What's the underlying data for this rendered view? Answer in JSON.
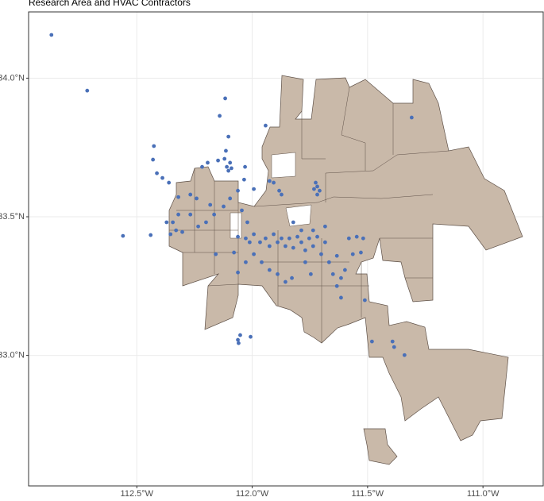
{
  "chart_data": {
    "type": "scatter",
    "title": "Research Area and HVAC Contractors",
    "xlim": [
      -112.969,
      -110.739
    ],
    "ylim": [
      32.529,
      34.239
    ],
    "grid": true,
    "color": "#4a70b8",
    "xticks": [
      {
        "value": -112.5,
        "label": "112.5°W"
      },
      {
        "value": -112.0,
        "label": "112.0°W"
      },
      {
        "value": -111.5,
        "label": "111.5°W"
      },
      {
        "value": -111.0,
        "label": "111.0°W"
      }
    ],
    "yticks": [
      {
        "value": 33.0,
        "label": "33.0°N"
      },
      {
        "value": 33.5,
        "label": "33.5°N"
      },
      {
        "value": 34.0,
        "label": "34.0°N"
      }
    ],
    "x": [
      -112.87,
      -112.715,
      -112.56,
      -112.44,
      -112.426,
      -112.43,
      -112.413,
      -112.389,
      -112.361,
      -112.371,
      -112.354,
      -112.33,
      -112.303,
      -112.32,
      -112.268,
      -112.241,
      -112.217,
      -112.193,
      -112.148,
      -112.12,
      -112.11,
      -112.103,
      -112.096,
      -112.09,
      -112.114,
      -112.103,
      -112.117,
      -112.141,
      -111.993,
      -112.031,
      -112.035,
      -112.062,
      -112.096,
      -112.124,
      -112.165,
      -112.2,
      -112.234,
      -112.158,
      -112.079,
      -112.062,
      -112.028,
      -112.011,
      -111.993,
      -111.966,
      -111.942,
      -111.925,
      -111.907,
      -111.89,
      -111.873,
      -111.856,
      -111.839,
      -111.822,
      -111.804,
      -111.787,
      -111.77,
      -111.753,
      -111.736,
      -111.718,
      -111.701,
      -111.684,
      -111.667,
      -111.65,
      -111.633,
      -111.615,
      -111.581,
      -111.564,
      -111.547,
      -111.519,
      -111.529,
      -111.512,
      -111.684,
      -111.736,
      -111.828,
      -111.856,
      -111.89,
      -111.925,
      -111.959,
      -111.993,
      -112.028,
      -112.062,
      -111.873,
      -111.907,
      -111.925,
      -111.942,
      -111.883,
      -111.725,
      -111.718,
      -111.708,
      -111.732,
      -111.718,
      -111.392,
      -111.385,
      -111.34,
      -111.481,
      -111.309,
      -112.052,
      -112.062,
      -112.059,
      -112.007,
      -112.182,
      -112.268,
      -112.32,
      -112.344,
      -112.045,
      -112.021,
      -111.822,
      -111.787,
      -111.77,
      -111.746,
      -111.615,
      -111.598,
      -111.633
    ],
    "values": [
      34.156,
      33.955,
      33.431,
      33.434,
      33.755,
      33.706,
      33.657,
      33.64,
      33.623,
      33.48,
      33.437,
      33.451,
      33.445,
      33.571,
      33.58,
      33.566,
      33.68,
      33.695,
      33.703,
      33.709,
      33.68,
      33.666,
      33.695,
      33.675,
      33.738,
      33.789,
      33.927,
      33.864,
      33.6,
      33.68,
      33.634,
      33.594,
      33.566,
      33.537,
      33.508,
      33.48,
      33.465,
      33.365,
      33.371,
      33.428,
      33.422,
      33.408,
      33.437,
      33.408,
      33.422,
      33.394,
      33.437,
      33.408,
      33.422,
      33.394,
      33.422,
      33.388,
      33.428,
      33.408,
      33.379,
      33.422,
      33.394,
      33.428,
      33.365,
      33.408,
      33.336,
      33.293,
      33.25,
      33.208,
      33.422,
      33.365,
      33.428,
      33.422,
      33.371,
      33.199,
      33.465,
      33.451,
      33.279,
      33.265,
      33.293,
      33.308,
      33.336,
      33.365,
      33.336,
      33.299,
      33.58,
      33.623,
      33.629,
      33.829,
      33.594,
      33.623,
      33.609,
      33.594,
      33.6,
      33.58,
      33.05,
      33.03,
      33.001,
      33.05,
      33.858,
      33.073,
      33.056,
      33.044,
      33.067,
      33.543,
      33.508,
      33.508,
      33.48,
      33.523,
      33.48,
      33.48,
      33.451,
      33.336,
      33.293,
      33.279,
      33.308,
      33.359
    ]
  }
}
